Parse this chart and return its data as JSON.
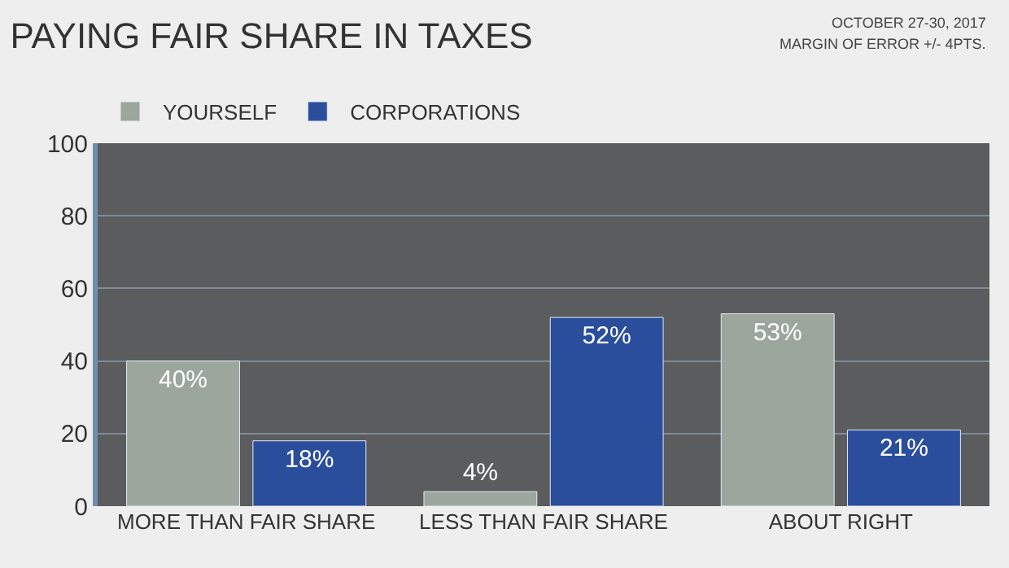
{
  "chart_data": {
    "type": "bar",
    "title": "PAYING FAIR SHARE IN TAXES",
    "annotations": [
      "OCTOBER 27-30, 2017",
      "MARGIN OF ERROR +/- 4PTS."
    ],
    "categories": [
      "MORE THAN FAIR SHARE",
      "LESS THAN FAIR SHARE",
      "ABOUT RIGHT"
    ],
    "series": [
      {
        "name": "YOURSELF",
        "color": "#9ba69c",
        "values": [
          40,
          4,
          53
        ],
        "value_labels": [
          "40%",
          "4%",
          "53%"
        ]
      },
      {
        "name": "CORPORATIONS",
        "color": "#2b4e9c",
        "values": [
          18,
          52,
          21
        ],
        "value_labels": [
          "18%",
          "52%",
          "21%"
        ]
      }
    ],
    "ylim": [
      0,
      100
    ],
    "yticks": [
      0,
      20,
      40,
      60,
      80,
      100
    ],
    "grid": "y",
    "legend": "top left"
  }
}
